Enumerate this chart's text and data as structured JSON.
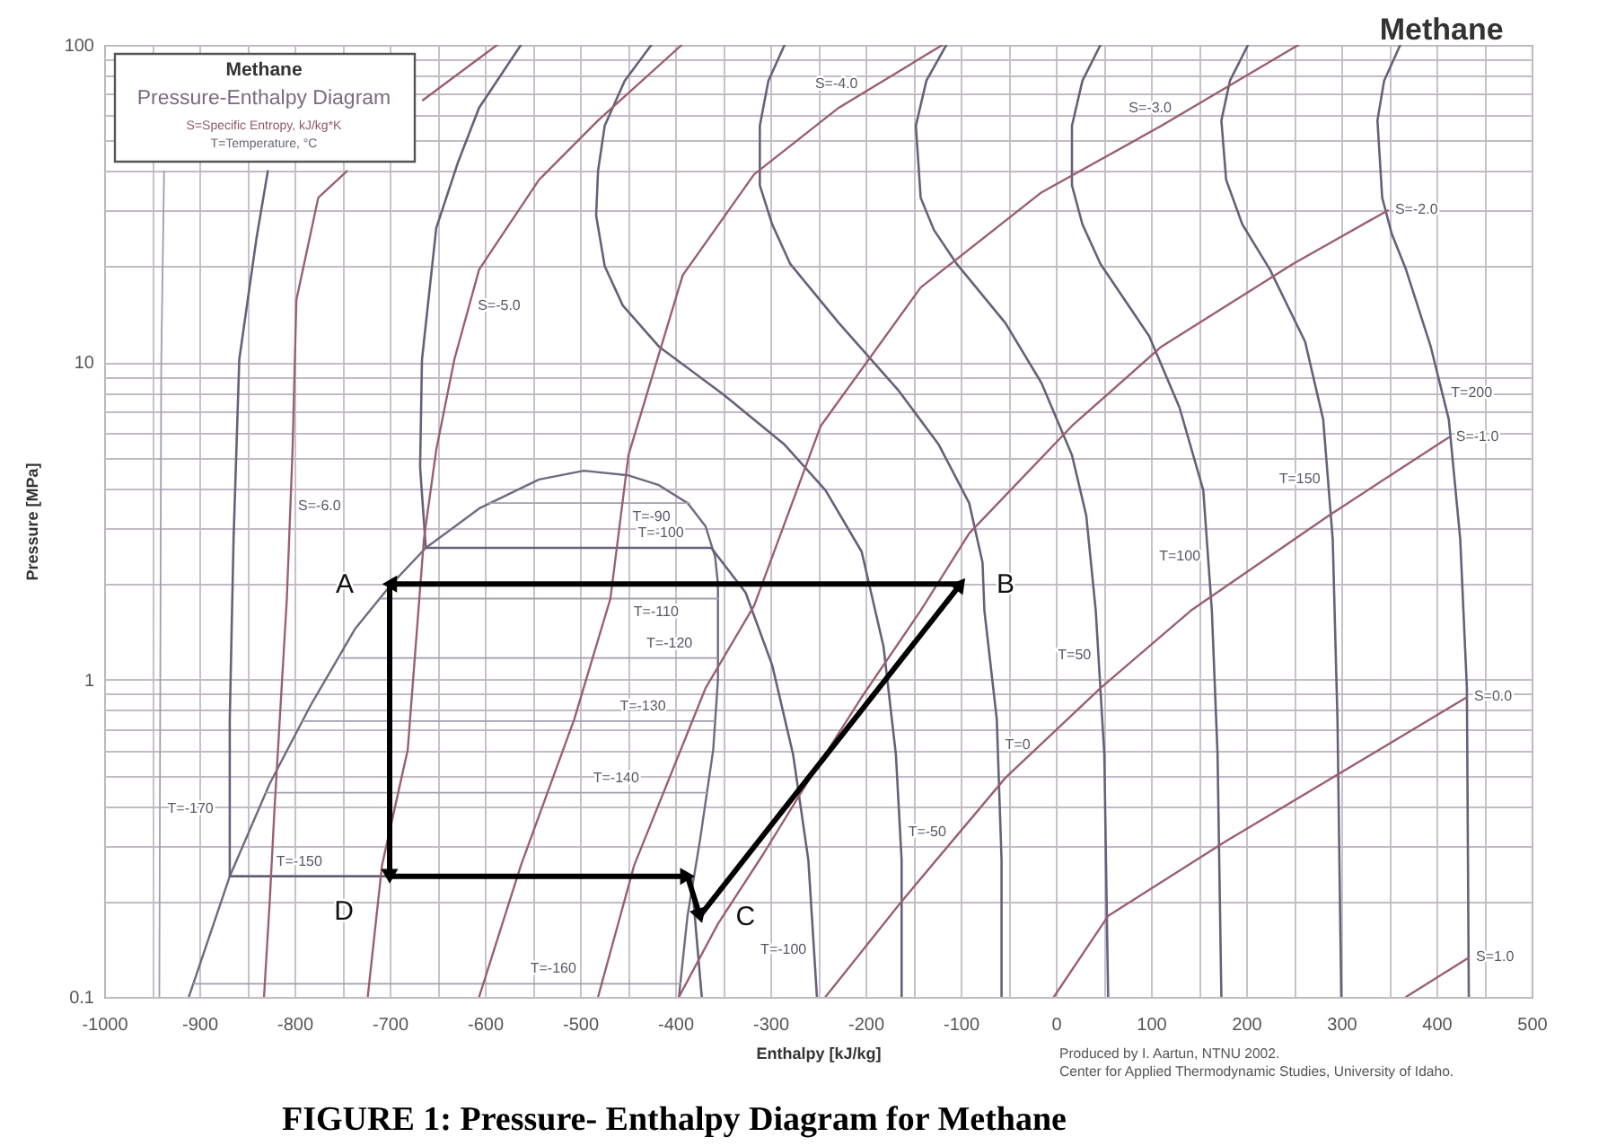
{
  "chart_data": {
    "type": "line",
    "title": "Methane",
    "xlabel": "Enthalpy [kJ/kg]",
    "ylabel": "Pressure [MPa]",
    "xlim": [
      -1000,
      500
    ],
    "ylim": [
      0.1,
      100
    ],
    "log": "y",
    "grid": true,
    "xticks": [
      -1000,
      {
        "value": -950,
        "label": null
      },
      -900,
      {
        "value": -850,
        "label": null
      },
      -800,
      {
        "value": -750,
        "label": null
      },
      -700,
      {
        "value": -650,
        "label": null
      },
      -600,
      {
        "value": -550,
        "label": null
      },
      -500,
      {
        "value": -450,
        "label": null
      },
      -400,
      {
        "value": -350,
        "label": null
      },
      -300,
      {
        "value": -250,
        "label": null
      },
      -200,
      {
        "value": -150,
        "label": null
      },
      -100,
      {
        "value": -50,
        "label": null
      },
      0,
      {
        "value": 50,
        "label": null
      },
      100,
      {
        "value": 150,
        "label": null
      },
      200,
      {
        "value": 250,
        "label": null
      },
      300,
      {
        "value": 350,
        "label": null
      },
      400,
      {
        "value": 450,
        "label": null
      },
      500
    ],
    "yticks": [
      0.1,
      {
        "value": 0.2,
        "label": null
      },
      {
        "value": 0.3,
        "label": null
      },
      {
        "value": 0.4,
        "label": null
      },
      {
        "value": 0.5,
        "label": null
      },
      {
        "value": 0.6,
        "label": null
      },
      {
        "value": 0.7,
        "label": null
      },
      {
        "value": 0.8,
        "label": null
      },
      {
        "value": 0.9,
        "label": null
      },
      1,
      {
        "value": 2,
        "label": null
      },
      {
        "value": 3,
        "label": null
      },
      {
        "value": 4,
        "label": null
      },
      {
        "value": 5,
        "label": null
      },
      {
        "value": 6,
        "label": null
      },
      {
        "value": 7,
        "label": null
      },
      {
        "value": 8,
        "label": null
      },
      {
        "value": 9,
        "label": null
      },
      10,
      {
        "value": 20,
        "label": null
      },
      {
        "value": 30,
        "label": null
      },
      {
        "value": 40,
        "label": null
      },
      {
        "value": 50,
        "label": null
      },
      {
        "value": 60,
        "label": null
      },
      {
        "value": 70,
        "label": null
      },
      {
        "value": 80,
        "label": null
      },
      {
        "value": 90,
        "label": null
      },
      100
    ],
    "series": [
      {
        "color": "#6f6a82",
        "x": [
          -911,
          -868,
          -826,
          -783,
          -736,
          -698,
          -662,
          -606,
          -543,
          -496,
          -449,
          -417,
          -387,
          -368,
          -358,
          -355,
          -355,
          -360,
          -374,
          -387,
          -396
        ],
        "values": [
          0.1,
          0.24,
          0.47,
          0.83,
          1.45,
          2.0,
          2.6,
          3.46,
          4.27,
          4.55,
          4.4,
          4.1,
          3.6,
          3.04,
          2.44,
          2.0,
          1.0,
          0.6,
          0.31,
          0.18,
          0.1
        ]
      },
      {
        "color": "#a39dae",
        "x": [
          -942,
          -940,
          -937
        ],
        "values": [
          0.1,
          10,
          40
        ]
      },
      {
        "color": "#a39dae",
        "x": [
          -906,
          -394
        ],
        "values": [
          0.11,
          0.11
        ]
      },
      {
        "color": "#66607a",
        "x": [
          -828,
          -840,
          -858,
          -864,
          -868,
          -868,
          -383,
          -372
        ],
        "values": [
          40,
          24.5,
          10.2,
          2.77,
          0.75,
          0.24,
          0.24,
          0.1
        ]
      },
      {
        "color": "#a39dae",
        "x": [
          -830,
          -367
        ],
        "values": [
          0.44,
          0.44
        ]
      },
      {
        "color": "#a39dae",
        "x": [
          -791,
          -359
        ],
        "values": [
          0.74,
          0.74
        ]
      },
      {
        "color": "#a39dae",
        "x": [
          -751,
          -356
        ],
        "values": [
          1.17,
          1.17
        ]
      },
      {
        "color": "#a39dae",
        "x": [
          -709,
          -355
        ],
        "values": [
          1.8,
          1.8
        ]
      },
      {
        "color": "#66607a",
        "x": [
          -562,
          -606,
          -628,
          -651,
          -666,
          -668,
          -662,
          -362,
          -326,
          -298,
          -276,
          -260,
          -251
        ],
        "values": [
          100,
          63.4,
          42.8,
          26.5,
          10.2,
          4.67,
          2.6,
          2.6,
          1.88,
          1.11,
          0.58,
          0.27,
          0.1
        ]
      },
      {
        "color": "#a39dae",
        "x": [
          -596,
          -385
        ],
        "values": [
          3.6,
          3.6
        ]
      },
      {
        "color": "#66607a",
        "x": [
          -425,
          -453,
          -474,
          -481,
          -483,
          -474,
          -455,
          -417,
          -349,
          -285,
          -242,
          -204,
          -181,
          -168,
          -162,
          -162
        ],
        "values": [
          100,
          77.1,
          55.6,
          40.1,
          29.0,
          20.1,
          15.1,
          11.2,
          7.9,
          5.5,
          3.95,
          2.53,
          1.27,
          0.58,
          0.27,
          0.1
        ]
      },
      {
        "color": "#66607a",
        "x": [
          -285,
          -302,
          -311,
          -311,
          -298,
          -279,
          -228,
          -166,
          -123,
          -91,
          -77,
          -75,
          -62,
          -57,
          -57
        ],
        "values": [
          100,
          77.1,
          55.6,
          36.1,
          27.2,
          20.4,
          13.3,
          8.2,
          5.5,
          3.6,
          2.34,
          1.65,
          0.75,
          0.27,
          0.1
        ]
      },
      {
        "color": "#66607a",
        "x": [
          -115,
          -136,
          -147,
          -142,
          -128,
          -104,
          -53,
          -15,
          17,
          32,
          42,
          51,
          55
        ],
        "values": [
          100,
          77.1,
          55.6,
          33.0,
          26.1,
          20.4,
          13.3,
          8.6,
          5.1,
          3.29,
          1.65,
          0.58,
          0.1
        ]
      },
      {
        "color": "#66607a",
        "x": [
          47,
          28,
          17,
          17,
          28,
          47,
          98,
          130,
          155,
          164,
          170,
          174
        ],
        "values": [
          100,
          77.1,
          55.6,
          36.1,
          27.2,
          20.4,
          12.1,
          7.2,
          3.95,
          1.65,
          0.58,
          0.1
        ]
      },
      {
        "color": "#66607a",
        "x": [
          202,
          183,
          174,
          179,
          196,
          225,
          262,
          281,
          291,
          296,
          300
        ],
        "values": [
          100,
          77.1,
          57.8,
          37.6,
          27.2,
          19.6,
          11.6,
          6.6,
          2.77,
          0.75,
          0.1
        ]
      },
      {
        "color": "#66607a",
        "x": [
          362,
          345,
          338,
          343,
          353,
          368,
          394,
          413,
          425,
          432,
          434
        ],
        "values": [
          100,
          77.1,
          57.8,
          33.0,
          25.4,
          19.6,
          11.2,
          6.6,
          2.77,
          0.94,
          0.1
        ]
      },
      {
        "color": "#9a5e6e",
        "x": [
          -832,
          -826,
          -821,
          -808,
          -802,
          -798,
          -775,
          -745,
          -705,
          -665,
          -587
        ],
        "values": [
          0.1,
          0.2,
          0.39,
          1.8,
          5.3,
          15.7,
          33.0,
          40,
          null,
          67,
          100
        ]
      },
      {
        "color": "#9a5e6e",
        "x": [
          -723,
          -708,
          -681,
          -664,
          -651,
          -632,
          -606,
          -543,
          -481,
          -393
        ],
        "values": [
          0.1,
          0.26,
          0.6,
          2.77,
          5.3,
          10.2,
          19.6,
          37.6,
          57.8,
          100
        ]
      },
      {
        "color": "#9a5e6e",
        "x": [
          -606,
          -562,
          -506,
          -468,
          -449,
          -392,
          -317,
          -228,
          -119
        ],
        "values": [
          0.1,
          0.26,
          0.75,
          1.8,
          5.1,
          18.8,
          39.1,
          63.4,
          100
        ]
      },
      {
        "color": "#9a5e6e",
        "x": [
          -481,
          -443,
          -368,
          -317,
          -247,
          -142,
          -15,
          111,
          255
        ],
        "values": [
          0.1,
          0.26,
          0.94,
          1.71,
          6.3,
          17.2,
          34.3,
          55.6,
          100
        ]
      },
      {
        "color": "#9a5e6e",
        "x": [
          -396,
          -355,
          -308,
          -260,
          -204,
          -142,
          -91,
          17,
          111,
          249,
          349
        ],
        "values": [
          0.1,
          0.17,
          0.28,
          0.48,
          0.88,
          1.65,
          2.89,
          6.3,
          11.2,
          20.4,
          30.1
        ]
      },
      {
        "color": "#9a5e6e",
        "x": [
          -242,
          -162,
          -53,
          47,
          142,
          287,
          413
        ],
        "values": [
          0.1,
          0.2,
          0.49,
          0.94,
          1.65,
          3.29,
          5.8
        ]
      },
      {
        "color": "#9a5e6e",
        "x": [
          -2,
          55,
          179,
          300,
          432
        ],
        "values": [
          0.1,
          0.18,
          0.31,
          0.51,
          0.88
        ]
      },
      {
        "color": "#9a5e6e",
        "x": [
          368,
          434
        ],
        "values": [
          0.1,
          0.133
        ]
      },
      {
        "color": "#000000",
        "marker": "triangle",
        "x": [
          -100,
          -700,
          -700,
          -387,
          -374
        ],
        "values": [
          2.0,
          2.0,
          0.24,
          0.24,
          0.18
        ]
      },
      {
        "color": "#000000",
        "x": [
          -374,
          -100
        ],
        "values": [
          0.18,
          2.0
        ]
      }
    ],
    "annotations": [
      "Methane",
      "Pressure-Enthalpy Diagram",
      "S=Specific Entropy, kJ/kg*K",
      "T=Temperature, °C",
      "Produced by I. Aartun, NTNU 2002.",
      "Center for Applied Thermodynamic Studies, University of Idaho.",
      "FIGURE 1: Pressure- Enthalpy Diagram for Methane",
      {
        "text": "T=-170",
        "x": -941,
        "y": 0.39
      },
      {
        "text": "T=-160",
        "x": -528,
        "y": 0.11
      },
      {
        "text": "T=-150",
        "x": -795,
        "y": 0.24
      },
      {
        "text": "T=-140",
        "x": -462,
        "y": 0.44
      },
      {
        "text": "T=-130",
        "x": -434,
        "y": 0.74
      },
      {
        "text": "T=-120",
        "x": -406,
        "y": 1.17
      },
      {
        "text": "T=-110",
        "x": -420,
        "y": 1.8
      },
      {
        "text": "T=-100",
        "x": -415,
        "y": 2.6
      },
      {
        "text": "T=-90",
        "x": -425,
        "y": 3.6
      },
      {
        "text": "T=-100",
        "x": -254,
        "y": 0.14
      },
      {
        "text": "T=-50",
        "x": -163,
        "y": 0.33
      },
      {
        "text": "T=0",
        "x": -61,
        "y": 0.62
      },
      {
        "text": "T=50",
        "x": 45,
        "y": 1.19
      },
      {
        "text": "T=100",
        "x": 160,
        "y": 2.44
      },
      {
        "text": "T=150",
        "x": 286,
        "y": 4.27
      },
      {
        "text": "T=200",
        "x": 406,
        "y": 8
      },
      {
        "text": "S=-6.0",
        "x": -804,
        "y": 3.5
      },
      {
        "text": "S=-5.0",
        "x": -617,
        "y": 15
      },
      {
        "text": "S=-4.0",
        "x": -188,
        "y": 75
      },
      {
        "text": "S=-3.0",
        "x": 142,
        "y": 63
      },
      {
        "text": "S=-2.0",
        "x": 349,
        "y": 30.1
      },
      {
        "text": "S=-1.0",
        "x": 413,
        "y": 5.8
      },
      {
        "text": "S=0.0",
        "x": 432,
        "y": 0.88
      },
      {
        "text": "S=1.0",
        "x": 434,
        "y": 0.133
      },
      {
        "text": "A",
        "x": -700,
        "y": 2.0
      },
      {
        "text": "B",
        "x": -100,
        "y": 2.0
      },
      {
        "text": "C",
        "x": -374,
        "y": 0.18
      },
      {
        "text": "D",
        "x": -700,
        "y": 0.24
      }
    ]
  }
}
